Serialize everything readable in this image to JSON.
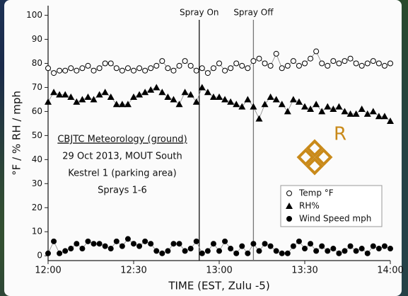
{
  "chart_data": {
    "type": "line",
    "xlabel": "TIME (EST, Zulu -5)",
    "ylabel": "°F / % RH / mph",
    "x": [
      0,
      2,
      4,
      6,
      8,
      10,
      12,
      14,
      16,
      18,
      20,
      22,
      24,
      26,
      28,
      30,
      32,
      34,
      36,
      38,
      40,
      42,
      44,
      46,
      48,
      50,
      52,
      54,
      56,
      58,
      60,
      62,
      64,
      66,
      68,
      70,
      72,
      74,
      76,
      78,
      80,
      82,
      84,
      86,
      88,
      90,
      92,
      94,
      96,
      98,
      100,
      102,
      104,
      106,
      108,
      110,
      112,
      114,
      116,
      118,
      120
    ],
    "xlim": [
      0,
      120
    ],
    "xticks": [
      {
        "value": 0,
        "label": "12:00"
      },
      {
        "value": 30,
        "label": "12:30"
      },
      {
        "value": 60,
        "label": "13:00"
      },
      {
        "value": 90,
        "label": "13:30"
      },
      {
        "value": 120,
        "label": "14:00"
      }
    ],
    "ylim": [
      -2,
      104
    ],
    "yticks": [
      0,
      10,
      20,
      30,
      40,
      50,
      60,
      70,
      80,
      90,
      100
    ],
    "legend": "lower right",
    "series": [
      {
        "name": "Temp °F",
        "color": "#000000",
        "marker": "open-circle",
        "values": [
          78,
          76,
          77,
          77,
          78,
          77,
          78,
          79,
          77,
          78,
          80,
          80,
          78,
          77,
          78,
          77,
          78,
          77,
          78,
          79,
          81,
          78,
          77,
          79,
          81,
          79,
          77,
          78,
          76,
          78,
          80,
          77,
          78,
          80,
          79,
          78,
          81,
          82,
          80,
          79,
          84,
          78,
          79,
          81,
          79,
          80,
          82,
          85,
          80,
          79,
          81,
          80,
          81,
          82,
          80,
          79,
          80,
          81,
          80,
          79,
          80
        ]
      },
      {
        "name": "RH%",
        "color": "#000000",
        "marker": "triangle",
        "values": [
          64,
          68,
          67,
          67,
          66,
          64,
          65,
          66,
          65,
          67,
          68,
          66,
          63,
          63,
          63,
          66,
          67,
          68,
          69,
          70,
          68,
          66,
          65,
          63,
          68,
          67,
          64,
          70,
          68,
          66,
          66,
          65,
          64,
          63,
          62,
          65,
          62,
          57,
          63,
          66,
          65,
          63,
          60,
          65,
          64,
          62,
          61,
          63,
          60,
          62,
          61,
          62,
          60,
          59,
          59,
          61,
          59,
          60,
          58,
          58,
          56
        ]
      },
      {
        "name": "Wind Speed mph",
        "color": "#000000",
        "marker": "circle",
        "values": [
          1,
          6,
          1,
          2,
          3,
          5,
          3,
          6,
          5,
          5,
          4,
          3,
          6,
          4,
          7,
          5,
          4,
          6,
          5,
          2,
          1,
          2,
          5,
          5,
          2,
          3,
          6,
          1,
          2,
          5,
          2,
          6,
          3,
          1,
          4,
          1,
          5,
          2,
          5,
          4,
          2,
          1,
          1,
          4,
          6,
          3,
          5,
          2,
          4,
          2,
          3,
          1,
          2,
          4,
          2,
          3,
          1,
          4,
          3,
          4,
          3
        ]
      }
    ],
    "vlines": [
      {
        "x": 53,
        "label": "Spray On"
      },
      {
        "x": 72,
        "label": "Spray Off"
      }
    ],
    "note_lines": [
      "CBJTC Meteorology (ground)",
      "29 Oct 2013, MOUT South",
      "Kestrel 1 (parking area)",
      "Sprays 1-6"
    ],
    "logo_text": "R"
  }
}
